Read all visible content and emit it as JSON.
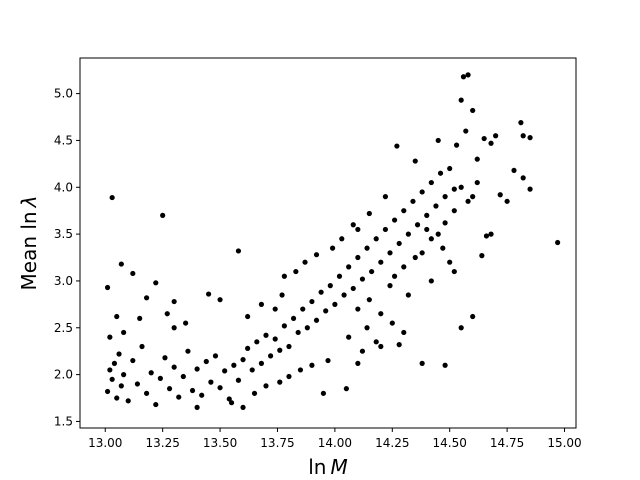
{
  "chart_data": {
    "type": "scatter",
    "title": "",
    "xlabel": "ln M",
    "ylabel": "Mean ln λ",
    "xlabel_parts": {
      "prefix": "ln",
      "var": "M"
    },
    "ylabel_parts": {
      "prefix": "Mean ln",
      "var": "λ"
    },
    "xlim": [
      12.89,
      15.05
    ],
    "ylim": [
      1.43,
      5.38
    ],
    "xticks": [
      {
        "value": 13.0,
        "label": "13.00"
      },
      {
        "value": 13.25,
        "label": "13.25"
      },
      {
        "value": 13.5,
        "label": "13.50"
      },
      {
        "value": 13.75,
        "label": "13.75"
      },
      {
        "value": 14.0,
        "label": "14.00"
      },
      {
        "value": 14.25,
        "label": "14.25"
      },
      {
        "value": 14.5,
        "label": "14.50"
      },
      {
        "value": 14.75,
        "label": "14.75"
      },
      {
        "value": 15.0,
        "label": "15.00"
      }
    ],
    "yticks": [
      {
        "value": 1.5,
        "label": "1.5"
      },
      {
        "value": 2.0,
        "label": "2.0"
      },
      {
        "value": 2.5,
        "label": "2.5"
      },
      {
        "value": 3.0,
        "label": "3.0"
      },
      {
        "value": 3.5,
        "label": "3.5"
      },
      {
        "value": 4.0,
        "label": "4.0"
      },
      {
        "value": 4.5,
        "label": "4.5"
      },
      {
        "value": 5.0,
        "label": "5.0"
      }
    ],
    "grid": false,
    "marker_color": "#000000",
    "points": [
      [
        13.01,
        1.82
      ],
      [
        13.02,
        2.05
      ],
      [
        13.03,
        1.95
      ],
      [
        13.04,
        2.12
      ],
      [
        13.05,
        1.75
      ],
      [
        13.06,
        2.22
      ],
      [
        13.07,
        1.88
      ],
      [
        13.08,
        2.0
      ],
      [
        13.1,
        1.72
      ],
      [
        13.12,
        2.15
      ],
      [
        13.14,
        1.9
      ],
      [
        13.16,
        2.3
      ],
      [
        13.18,
        1.8
      ],
      [
        13.2,
        2.02
      ],
      [
        13.22,
        1.68
      ],
      [
        13.24,
        1.96
      ],
      [
        13.26,
        2.18
      ],
      [
        13.28,
        1.85
      ],
      [
        13.3,
        2.08
      ],
      [
        13.32,
        1.76
      ],
      [
        13.34,
        1.98
      ],
      [
        13.36,
        2.25
      ],
      [
        13.38,
        1.83
      ],
      [
        13.4,
        2.06
      ],
      [
        13.42,
        1.78
      ],
      [
        13.44,
        2.14
      ],
      [
        13.46,
        1.92
      ],
      [
        13.48,
        2.2
      ],
      [
        13.5,
        1.86
      ],
      [
        13.52,
        2.04
      ],
      [
        13.54,
        1.74
      ],
      [
        13.56,
        2.1
      ],
      [
        13.58,
        1.94
      ],
      [
        13.6,
        2.16
      ],
      [
        13.62,
        2.28
      ],
      [
        13.64,
        2.05
      ],
      [
        13.66,
        2.35
      ],
      [
        13.68,
        2.12
      ],
      [
        13.7,
        2.42
      ],
      [
        13.72,
        2.2
      ],
      [
        13.74,
        2.38
      ],
      [
        13.76,
        2.26
      ],
      [
        13.78,
        2.52
      ],
      [
        13.8,
        2.3
      ],
      [
        13.82,
        2.6
      ],
      [
        13.84,
        2.45
      ],
      [
        13.86,
        2.7
      ],
      [
        13.88,
        2.5
      ],
      [
        13.9,
        2.78
      ],
      [
        13.92,
        2.58
      ],
      [
        13.94,
        2.88
      ],
      [
        13.96,
        2.68
      ],
      [
        13.98,
        2.95
      ],
      [
        14.0,
        2.75
      ],
      [
        14.02,
        3.05
      ],
      [
        14.04,
        2.85
      ],
      [
        14.06,
        3.15
      ],
      [
        14.08,
        2.92
      ],
      [
        14.1,
        3.25
      ],
      [
        14.12,
        3.02
      ],
      [
        14.14,
        3.35
      ],
      [
        14.16,
        3.1
      ],
      [
        14.18,
        3.45
      ],
      [
        14.2,
        3.2
      ],
      [
        14.22,
        3.55
      ],
      [
        14.24,
        3.3
      ],
      [
        14.26,
        3.65
      ],
      [
        14.28,
        3.4
      ],
      [
        14.3,
        3.75
      ],
      [
        14.32,
        3.5
      ],
      [
        14.34,
        3.85
      ],
      [
        14.36,
        3.6
      ],
      [
        14.38,
        3.95
      ],
      [
        14.4,
        3.7
      ],
      [
        14.42,
        4.05
      ],
      [
        14.44,
        3.8
      ],
      [
        14.46,
        4.15
      ],
      [
        14.48,
        3.9
      ],
      [
        14.5,
        4.2
      ],
      [
        14.52,
        3.98
      ],
      [
        13.03,
        3.89
      ],
      [
        13.07,
        3.18
      ],
      [
        13.12,
        3.08
      ],
      [
        13.25,
        3.7
      ],
      [
        13.58,
        3.32
      ],
      [
        13.22,
        2.98
      ],
      [
        13.18,
        2.82
      ],
      [
        13.3,
        2.78
      ],
      [
        13.45,
        2.86
      ],
      [
        13.5,
        2.8
      ],
      [
        13.4,
        1.65
      ],
      [
        13.6,
        1.65
      ],
      [
        13.95,
        1.8
      ],
      [
        14.05,
        1.85
      ],
      [
        14.1,
        2.12
      ],
      [
        14.2,
        2.3
      ],
      [
        14.28,
        2.32
      ],
      [
        14.38,
        2.12
      ],
      [
        14.48,
        2.1
      ],
      [
        14.55,
        2.5
      ],
      [
        14.6,
        2.62
      ],
      [
        14.58,
        5.2
      ],
      [
        14.56,
        5.18
      ],
      [
        14.55,
        4.93
      ],
      [
        14.6,
        4.82
      ],
      [
        14.57,
        4.6
      ],
      [
        14.65,
        4.52
      ],
      [
        14.68,
        4.47
      ],
      [
        14.7,
        4.55
      ],
      [
        14.81,
        4.69
      ],
      [
        14.82,
        4.55
      ],
      [
        14.85,
        4.53
      ],
      [
        14.82,
        4.1
      ],
      [
        14.85,
        3.98
      ],
      [
        14.78,
        4.18
      ],
      [
        14.72,
        3.92
      ],
      [
        14.75,
        3.85
      ],
      [
        14.66,
        3.48
      ],
      [
        14.68,
        3.5
      ],
      [
        14.64,
        3.27
      ],
      [
        14.97,
        3.41
      ],
      [
        14.62,
        4.3
      ],
      [
        14.53,
        4.45
      ],
      [
        14.45,
        4.5
      ],
      [
        14.35,
        4.28
      ],
      [
        14.27,
        4.44
      ],
      [
        14.47,
        3.35
      ],
      [
        14.5,
        3.2
      ],
      [
        14.52,
        3.1
      ],
      [
        14.42,
        3.0
      ],
      [
        14.32,
        2.85
      ],
      [
        14.3,
        2.45
      ],
      [
        14.25,
        2.55
      ],
      [
        14.18,
        2.35
      ],
      [
        14.22,
        3.9
      ],
      [
        14.15,
        3.72
      ],
      [
        14.08,
        3.6
      ],
      [
        14.1,
        3.55
      ],
      [
        14.03,
        3.45
      ],
      [
        13.99,
        3.35
      ],
      [
        13.92,
        3.28
      ],
      [
        13.87,
        3.2
      ],
      [
        13.83,
        3.1
      ],
      [
        13.78,
        3.05
      ],
      [
        13.8,
        1.98
      ],
      [
        13.85,
        2.05
      ],
      [
        13.76,
        1.92
      ],
      [
        13.7,
        1.88
      ],
      [
        13.9,
        2.1
      ],
      [
        13.97,
        2.15
      ],
      [
        13.65,
        1.8
      ],
      [
        13.55,
        1.7
      ],
      [
        13.35,
        2.55
      ],
      [
        13.27,
        2.65
      ],
      [
        13.15,
        2.6
      ],
      [
        13.05,
        2.62
      ],
      [
        13.01,
        2.93
      ],
      [
        13.02,
        2.4
      ],
      [
        13.08,
        2.45
      ],
      [
        13.3,
        2.5
      ],
      [
        13.62,
        2.62
      ],
      [
        13.68,
        2.75
      ],
      [
        13.74,
        2.7
      ],
      [
        13.77,
        2.85
      ],
      [
        14.12,
        2.25
      ],
      [
        14.06,
        2.4
      ],
      [
        14.14,
        2.5
      ],
      [
        14.2,
        2.65
      ],
      [
        14.42,
        3.45
      ],
      [
        14.45,
        3.5
      ],
      [
        14.48,
        3.62
      ],
      [
        14.52,
        3.75
      ],
      [
        14.55,
        4.0
      ],
      [
        14.58,
        3.85
      ],
      [
        14.6,
        3.9
      ],
      [
        14.62,
        4.05
      ],
      [
        14.35,
        3.25
      ],
      [
        14.38,
        3.3
      ],
      [
        14.4,
        3.55
      ],
      [
        14.3,
        3.15
      ],
      [
        14.26,
        3.05
      ],
      [
        14.24,
        2.95
      ],
      [
        14.15,
        2.8
      ],
      [
        14.1,
        2.7
      ]
    ]
  }
}
